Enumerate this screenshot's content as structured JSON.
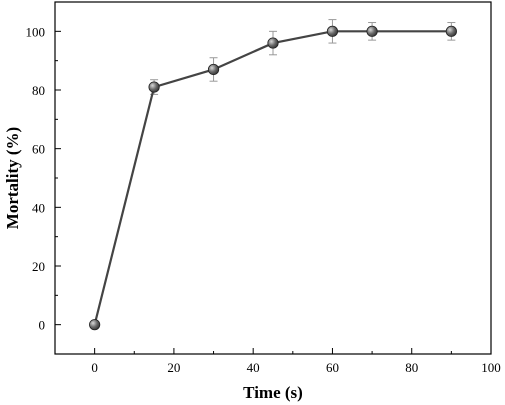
{
  "chart_data": {
    "type": "line",
    "xlabel": "Time (s)",
    "ylabel": "Mortality (%)",
    "xlim": [
      -10,
      100
    ],
    "ylim": [
      -10,
      110
    ],
    "x_ticks": [
      0,
      20,
      40,
      60,
      80,
      100
    ],
    "x_tick_labels": [
      "0",
      "20",
      "40",
      "60",
      "80",
      "100"
    ],
    "y_ticks": [
      0,
      20,
      40,
      60,
      80,
      100
    ],
    "y_tick_labels": [
      "0",
      "20",
      "40",
      "60",
      "80",
      "100"
    ],
    "grid": false,
    "series": [
      {
        "x": [
          0,
          15,
          30,
          45,
          60,
          70,
          90
        ],
        "y": [
          0,
          81,
          87,
          96,
          100,
          100,
          100
        ],
        "error": [
          0,
          2.5,
          4,
          4,
          4,
          3,
          3
        ],
        "color": "#444444",
        "marker_color": "#555555"
      }
    ]
  }
}
